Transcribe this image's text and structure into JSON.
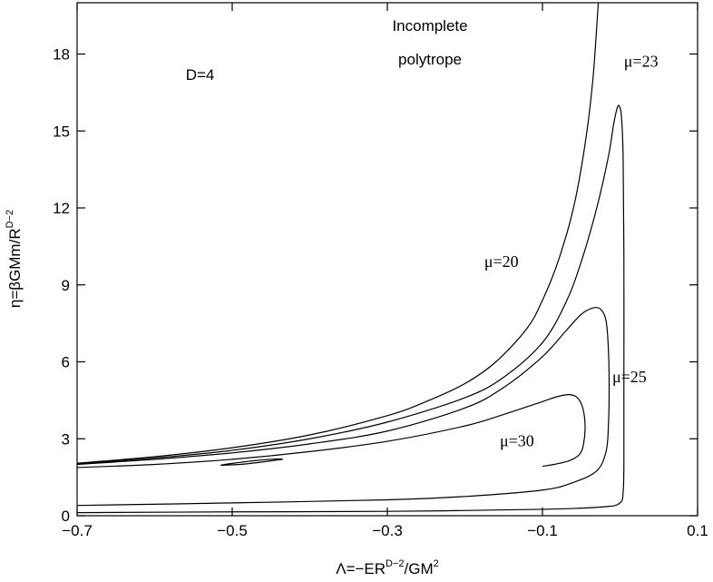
{
  "chart_data": {
    "type": "line",
    "xlim": [
      -0.7,
      0.1
    ],
    "ylim": [
      0,
      20
    ],
    "xticks": [
      -0.7,
      -0.5,
      -0.3,
      -0.1,
      0.1
    ],
    "xtick_labels": [
      "−0.7",
      "−0.5",
      "−0.3",
      "−0.1",
      "0.1"
    ],
    "yticks": [
      0,
      3,
      6,
      9,
      12,
      15,
      18
    ],
    "ytick_labels": [
      "0",
      "3",
      "6",
      "9",
      "12",
      "15",
      "18"
    ],
    "xlabel": {
      "base": "Λ=−ER",
      "sup1": "D−2",
      "mid": "/GM",
      "sup2": "2"
    },
    "ylabel": {
      "base": "η=βGMm/R",
      "sup": "D−2"
    },
    "grid": false,
    "legend": "none",
    "annotations": [
      {
        "text": "D=4",
        "x": -0.56,
        "y": 17.0,
        "style": "sans"
      },
      {
        "text": "Incomplete",
        "x": -0.245,
        "y": 18.9,
        "style": "sans",
        "anchor": "middle"
      },
      {
        "text": "polytrope",
        "x": -0.245,
        "y": 17.6,
        "style": "sans",
        "anchor": "middle"
      },
      {
        "text": "μ=23",
        "x": 0.005,
        "y": 17.5,
        "style": "serif"
      },
      {
        "text": "μ=20",
        "x": -0.175,
        "y": 9.7,
        "style": "serif"
      },
      {
        "text": "μ=25",
        "x": -0.01,
        "y": 5.2,
        "style": "serif"
      },
      {
        "text": "μ=30",
        "x": -0.155,
        "y": 2.7,
        "style": "serif"
      }
    ],
    "series": [
      {
        "points": [
          [
            -0.7,
            2.05
          ],
          [
            -0.6,
            2.3
          ],
          [
            -0.5,
            2.65
          ],
          [
            -0.4,
            3.15
          ],
          [
            -0.3,
            3.9
          ],
          [
            -0.25,
            4.45
          ],
          [
            -0.2,
            5.15
          ],
          [
            -0.16,
            6.0
          ],
          [
            -0.12,
            7.3
          ],
          [
            -0.1,
            8.4
          ],
          [
            -0.08,
            9.9
          ],
          [
            -0.06,
            12.0
          ],
          [
            -0.045,
            14.5
          ],
          [
            -0.035,
            17.0
          ],
          [
            -0.028,
            20.0
          ]
        ]
      },
      {
        "points": [
          [
            -0.7,
            2.02
          ],
          [
            -0.6,
            2.25
          ],
          [
            -0.5,
            2.55
          ],
          [
            -0.4,
            3.0
          ],
          [
            -0.3,
            3.65
          ],
          [
            -0.2,
            4.6
          ],
          [
            -0.15,
            5.4
          ],
          [
            -0.1,
            6.75
          ],
          [
            -0.07,
            8.3
          ],
          [
            -0.05,
            9.9
          ],
          [
            -0.03,
            12.0
          ],
          [
            -0.015,
            14.0
          ],
          [
            -0.008,
            15.3
          ],
          [
            -0.003,
            15.95
          ],
          [
            0.0,
            15.9
          ],
          [
            0.002,
            15.5
          ],
          [
            0.004,
            14.0
          ],
          [
            0.005,
            10.0
          ],
          [
            0.005,
            5.0
          ],
          [
            0.005,
            2.0
          ],
          [
            0.004,
            0.9
          ],
          [
            0.0,
            0.5
          ],
          [
            -0.02,
            0.35
          ],
          [
            -0.1,
            0.25
          ],
          [
            -0.3,
            0.17
          ],
          [
            -0.5,
            0.15
          ],
          [
            -0.7,
            0.12
          ]
        ]
      },
      {
        "points": [
          [
            -0.7,
            2.0
          ],
          [
            -0.6,
            2.2
          ],
          [
            -0.5,
            2.45
          ],
          [
            -0.4,
            2.8
          ],
          [
            -0.3,
            3.3
          ],
          [
            -0.2,
            4.2
          ],
          [
            -0.15,
            5.0
          ],
          [
            -0.1,
            6.2
          ],
          [
            -0.07,
            7.2
          ],
          [
            -0.05,
            7.85
          ],
          [
            -0.035,
            8.1
          ],
          [
            -0.025,
            8.05
          ],
          [
            -0.018,
            7.6
          ],
          [
            -0.015,
            6.5
          ],
          [
            -0.014,
            5.0
          ],
          [
            -0.015,
            3.5
          ],
          [
            -0.018,
            2.5
          ],
          [
            -0.03,
            1.75
          ],
          [
            -0.06,
            1.3
          ],
          [
            -0.1,
            1.0
          ],
          [
            -0.2,
            0.75
          ],
          [
            -0.3,
            0.62
          ],
          [
            -0.5,
            0.5
          ],
          [
            -0.7,
            0.4
          ]
        ]
      },
      {
        "points": [
          [
            -0.7,
            1.88
          ],
          [
            -0.6,
            2.0
          ],
          [
            -0.5,
            2.2
          ],
          [
            -0.4,
            2.5
          ],
          [
            -0.3,
            2.9
          ],
          [
            -0.2,
            3.5
          ],
          [
            -0.15,
            3.95
          ],
          [
            -0.1,
            4.45
          ],
          [
            -0.08,
            4.65
          ],
          [
            -0.065,
            4.72
          ],
          [
            -0.055,
            4.6
          ],
          [
            -0.048,
            4.2
          ],
          [
            -0.045,
            3.5
          ],
          [
            -0.047,
            2.8
          ],
          [
            -0.052,
            2.4
          ],
          [
            -0.065,
            2.15
          ],
          [
            -0.085,
            2.0
          ],
          [
            -0.1,
            1.93
          ]
        ]
      },
      {
        "points": [
          [
            -0.515,
            1.97
          ],
          [
            -0.49,
            2.0
          ],
          [
            -0.465,
            2.08
          ],
          [
            -0.445,
            2.16
          ],
          [
            -0.435,
            2.2
          ],
          [
            -0.445,
            2.21
          ],
          [
            -0.47,
            2.15
          ],
          [
            -0.5,
            2.04
          ],
          [
            -0.515,
            1.97
          ]
        ]
      }
    ]
  }
}
